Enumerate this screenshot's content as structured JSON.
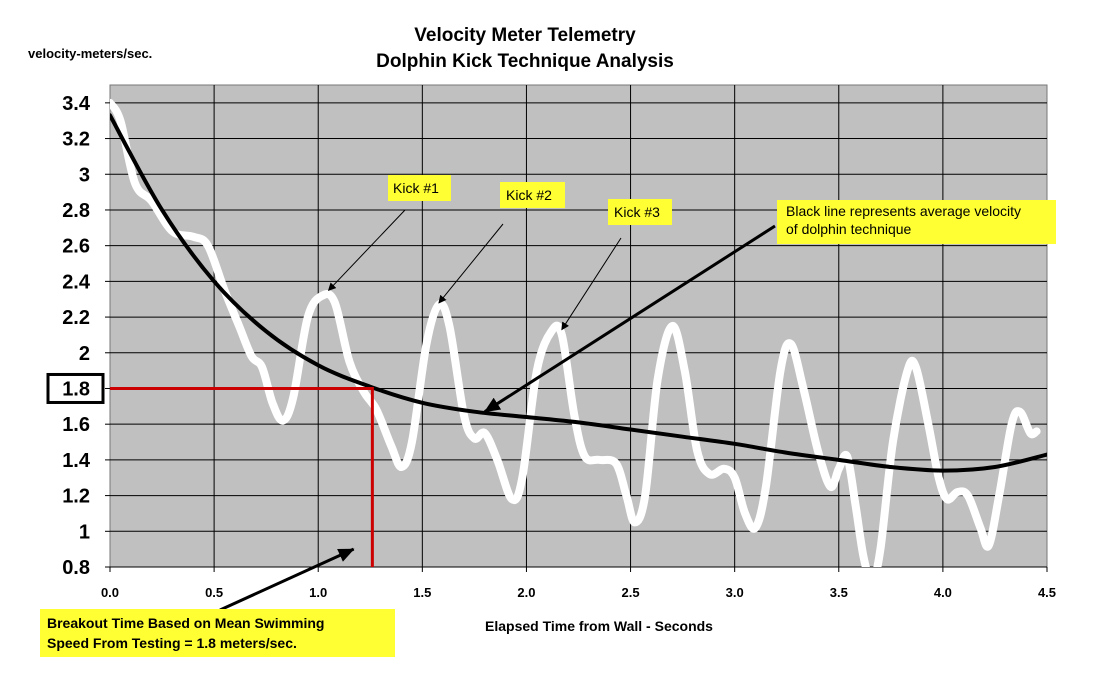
{
  "chart_data": {
    "type": "line",
    "title": "Velocity Meter Telemetry",
    "subtitle": "Dolphin Kick Technique Analysis",
    "ylabel": "velocity-meters/sec.",
    "xlabel": "Elapsed Time from Wall - Seconds",
    "xlim": [
      0,
      4.5
    ],
    "ylim": [
      0.8,
      3.5
    ],
    "xticks": [
      "0.0",
      "0.5",
      "1.0",
      "1.5",
      "2.0",
      "2.5",
      "3.0",
      "3.5",
      "4.0",
      "4.5"
    ],
    "yticks": [
      "0.8",
      "1",
      "1.2",
      "1.4",
      "1.6",
      "1.8",
      "2",
      "2.2",
      "2.4",
      "2.6",
      "2.8",
      "3",
      "3.2",
      "3.4"
    ],
    "grid": true,
    "background": "#c0c0c0",
    "series": [
      {
        "color": "#ffffff",
        "x": [
          0,
          0.05,
          0.12,
          0.2,
          0.3,
          0.4,
          0.47,
          0.55,
          0.62,
          0.68,
          0.73,
          0.78,
          0.83,
          0.88,
          0.95,
          1.02,
          1.08,
          1.15,
          1.22,
          1.28,
          1.35,
          1.4,
          1.45,
          1.52,
          1.58,
          1.63,
          1.7,
          1.75,
          1.8,
          1.86,
          1.93,
          1.98,
          2.05,
          2.12,
          2.17,
          2.23,
          2.28,
          2.35,
          2.43,
          2.48,
          2.52,
          2.57,
          2.63,
          2.7,
          2.76,
          2.82,
          2.88,
          2.95,
          3.0,
          3.05,
          3.1,
          3.15,
          3.22,
          3.27,
          3.33,
          3.4,
          3.46,
          3.5,
          3.54,
          3.58,
          3.62,
          3.66,
          3.7,
          3.76,
          3.83,
          3.87,
          3.93,
          3.98,
          4.02,
          4.07,
          4.12,
          4.18,
          4.22,
          4.27,
          4.33,
          4.37,
          4.42,
          4.45
        ],
        "y": [
          3.4,
          3.3,
          2.95,
          2.85,
          2.68,
          2.65,
          2.6,
          2.35,
          2.15,
          1.98,
          1.92,
          1.72,
          1.62,
          1.75,
          2.2,
          2.32,
          2.28,
          1.95,
          1.78,
          1.68,
          1.48,
          1.36,
          1.5,
          2.05,
          2.27,
          2.15,
          1.65,
          1.52,
          1.55,
          1.4,
          1.18,
          1.3,
          1.9,
          2.12,
          2.1,
          1.65,
          1.42,
          1.4,
          1.38,
          1.2,
          1.05,
          1.2,
          1.85,
          2.15,
          1.9,
          1.45,
          1.32,
          1.35,
          1.3,
          1.1,
          1.02,
          1.25,
          1.9,
          2.05,
          1.8,
          1.45,
          1.25,
          1.35,
          1.42,
          1.15,
          0.85,
          0.72,
          0.9,
          1.5,
          1.9,
          1.92,
          1.6,
          1.3,
          1.18,
          1.22,
          1.2,
          1.02,
          0.92,
          1.2,
          1.6,
          1.67,
          1.55,
          1.56
        ]
      },
      {
        "color": "#000000",
        "x": [
          0,
          0.25,
          0.5,
          0.75,
          1.0,
          1.25,
          1.5,
          1.75,
          2.0,
          2.25,
          2.5,
          2.75,
          3.0,
          3.25,
          3.5,
          3.75,
          4.0,
          4.25,
          4.5
        ],
        "y": [
          3.33,
          2.8,
          2.4,
          2.12,
          1.93,
          1.81,
          1.72,
          1.67,
          1.64,
          1.61,
          1.57,
          1.53,
          1.49,
          1.44,
          1.4,
          1.36,
          1.34,
          1.36,
          1.43
        ]
      }
    ],
    "reference": {
      "y": 1.8,
      "x": 1.26,
      "color": "#cc0000",
      "highlight_tick": "1.8"
    },
    "annotations": [
      {
        "text": "Kick #1",
        "target": [
          1.05,
          2.35
        ]
      },
      {
        "text": "Kick #2",
        "target": [
          1.58,
          2.28
        ]
      },
      {
        "text": "Kick #3",
        "target": [
          2.17,
          2.13
        ]
      },
      {
        "text": "Black line represents average velocity of dolphin technique",
        "lines": [
          "Black line represents average velocity",
          "of dolphin technique"
        ],
        "target": [
          1.8,
          1.67
        ]
      },
      {
        "text": "Breakout Time Based on Mean Swimming Speed From Testing = 1.8 meters/sec.",
        "lines": [
          "Breakout Time Based on Mean Swimming",
          "Speed From Testing = 1.8 meters/sec."
        ],
        "target": [
          1.17,
          0.9
        ]
      }
    ],
    "annotation_color": "#ffff33"
  }
}
